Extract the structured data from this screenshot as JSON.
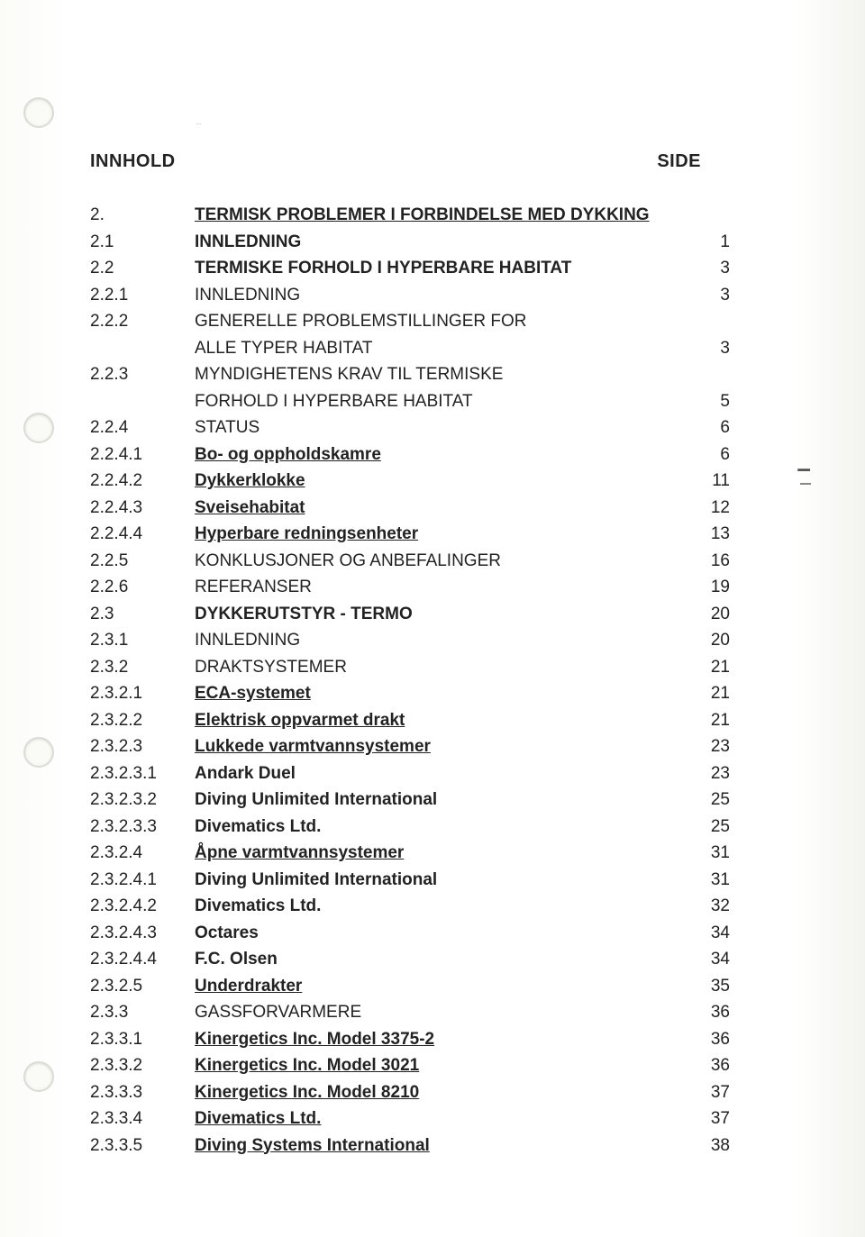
{
  "header": {
    "left": "INNHOLD",
    "right": "SIDE"
  },
  "entries": [
    {
      "num": "2.",
      "title": "TERMISK PROBLEMER I FORBINDELSE MED DYKKING",
      "page": "",
      "bold": true,
      "under": true
    },
    {
      "num": "2.1",
      "title": "INNLEDNING",
      "page": "1",
      "bold": true
    },
    {
      "num": "2.2",
      "title": "TERMISKE FORHOLD I HYPERBARE HABITAT",
      "page": "3",
      "bold": true
    },
    {
      "num": "2.2.1",
      "title": "INNLEDNING",
      "page": "3"
    },
    {
      "num": "2.2.2",
      "title": "GENERELLE PROBLEMSTILLINGER FOR",
      "page": ""
    },
    {
      "num": "",
      "title": "ALLE TYPER HABITAT",
      "page": "3"
    },
    {
      "num": "2.2.3",
      "title": "MYNDIGHETENS KRAV TIL TERMISKE",
      "page": ""
    },
    {
      "num": "",
      "title": "FORHOLD I HYPERBARE HABITAT",
      "page": "5"
    },
    {
      "num": "2.2.4",
      "title": "STATUS",
      "page": "6"
    },
    {
      "num": "2.2.4.1",
      "title": "Bo- og oppholdskamre",
      "page": "6",
      "bold": true,
      "under": true
    },
    {
      "num": "2.2.4.2",
      "title": "Dykkerklokke",
      "page": "11",
      "bold": true,
      "under": true
    },
    {
      "num": "2.2.4.3",
      "title": "Sveisehabitat",
      "page": "12",
      "bold": true,
      "under": true
    },
    {
      "num": "2.2.4.4",
      "title": "Hyperbare redningsenheter",
      "page": "13",
      "bold": true,
      "under": true
    },
    {
      "num": "2.2.5",
      "title": "KONKLUSJONER OG ANBEFALINGER",
      "page": "16"
    },
    {
      "num": "2.2.6",
      "title": "REFERANSER",
      "page": "19"
    },
    {
      "num": "2.3",
      "title": "DYKKERUTSTYR - TERMO",
      "page": "20",
      "bold": true
    },
    {
      "num": "2.3.1",
      "title": "INNLEDNING",
      "page": "20"
    },
    {
      "num": "2.3.2",
      "title": "DRAKTSYSTEMER",
      "page": "21"
    },
    {
      "num": "2.3.2.1",
      "title": "ECA-systemet",
      "page": "21",
      "bold": true,
      "under": true
    },
    {
      "num": "2.3.2.2",
      "title": "Elektrisk oppvarmet drakt",
      "page": "21",
      "bold": true,
      "under": true
    },
    {
      "num": "2.3.2.3",
      "title": "Lukkede varmtvannsystemer",
      "page": "23",
      "bold": true,
      "under": true
    },
    {
      "num": "2.3.2.3.1",
      "title": "Andark Duel",
      "page": "23",
      "bold": true
    },
    {
      "num": "2.3.2.3.2",
      "title": "Diving Unlimited International",
      "page": "25",
      "bold": true
    },
    {
      "num": "2.3.2.3.3",
      "title": "Divematics Ltd.",
      "page": "25",
      "bold": true
    },
    {
      "num": "2.3.2.4",
      "title": "Åpne varmtvannsystemer",
      "page": "31",
      "bold": true,
      "under": true
    },
    {
      "num": "2.3.2.4.1",
      "title": "Diving Unlimited International",
      "page": "31",
      "bold": true
    },
    {
      "num": "2.3.2.4.2",
      "title": "Divematics Ltd.",
      "page": "32",
      "bold": true
    },
    {
      "num": "2.3.2.4.3",
      "title": "Octares",
      "page": "34",
      "bold": true
    },
    {
      "num": "2.3.2.4.4",
      "title": "F.C. Olsen",
      "page": "34",
      "bold": true
    },
    {
      "num": "2.3.2.5",
      "title": "Underdrakter",
      "page": "35",
      "bold": true,
      "under": true
    },
    {
      "num": "2.3.3",
      "title": "GASSFORVARMERE",
      "page": "36"
    },
    {
      "num": "2.3.3.1",
      "title": "Kinergetics Inc. Model 3375-2",
      "page": "36",
      "bold": true,
      "under": true
    },
    {
      "num": "2.3.3.2",
      "title": "Kinergetics Inc. Model 3021",
      "page": "36",
      "bold": true,
      "under": true
    },
    {
      "num": "2.3.3.3",
      "title": "Kinergetics Inc. Model 8210",
      "page": "37",
      "bold": true,
      "under": true
    },
    {
      "num": "2.3.3.4",
      "title": "Divematics Ltd.",
      "page": "37",
      "bold": true,
      "under": true
    },
    {
      "num": "2.3.3.5",
      "title": "Diving Systems International",
      "page": "38",
      "bold": true,
      "under": true
    }
  ]
}
